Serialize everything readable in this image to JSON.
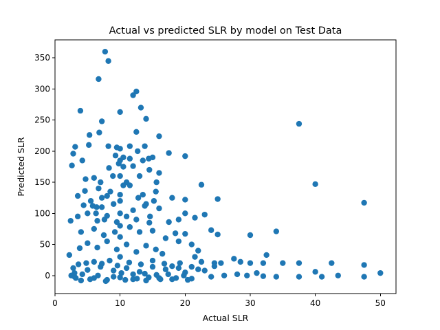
{
  "chart_data": {
    "type": "scatter",
    "title": "Actual vs predicted SLR by model on Test Data",
    "xlabel": "Actual SLR",
    "ylabel": "Predicted SLR",
    "xlim": [
      0,
      52.4
    ],
    "ylim": [
      -29,
      379
    ],
    "xticks": [
      0,
      10,
      20,
      30,
      40,
      50
    ],
    "yticks": [
      0,
      50,
      100,
      150,
      200,
      250,
      300,
      350
    ],
    "grid": false,
    "marker_color": "#1f77b4",
    "points": [
      [
        7.7,
        360
      ],
      [
        8.2,
        345
      ],
      [
        6.7,
        316
      ],
      [
        12.5,
        296
      ],
      [
        12.0,
        290
      ],
      [
        10.0,
        263
      ],
      [
        3.9,
        265
      ],
      [
        13.2,
        270
      ],
      [
        7.2,
        248
      ],
      [
        14.0,
        252
      ],
      [
        37.5,
        244
      ],
      [
        5.3,
        226
      ],
      [
        6.8,
        230
      ],
      [
        12.5,
        231
      ],
      [
        16.0,
        224
      ],
      [
        11.5,
        208
      ],
      [
        3.1,
        207
      ],
      [
        5.2,
        210
      ],
      [
        8.2,
        208
      ],
      [
        9.5,
        206
      ],
      [
        10.0,
        204
      ],
      [
        13.8,
        208
      ],
      [
        17.5,
        197
      ],
      [
        20.0,
        192
      ],
      [
        2.8,
        196
      ],
      [
        15.0,
        190
      ],
      [
        9.3,
        193
      ],
      [
        10.5,
        190
      ],
      [
        11.5,
        188
      ],
      [
        13.5,
        185
      ],
      [
        4.2,
        185
      ],
      [
        2.6,
        177
      ],
      [
        8.3,
        173
      ],
      [
        10.5,
        175
      ],
      [
        12.0,
        176
      ],
      [
        14.5,
        170
      ],
      [
        16.0,
        165
      ],
      [
        6.0,
        157
      ],
      [
        4.7,
        155
      ],
      [
        7.0,
        150
      ],
      [
        13.0,
        160
      ],
      [
        11.0,
        150
      ],
      [
        22.5,
        146
      ],
      [
        40.0,
        147
      ],
      [
        6.7,
        140
      ],
      [
        8.5,
        135
      ],
      [
        10.5,
        145
      ],
      [
        13.5,
        130
      ],
      [
        15.5,
        135
      ],
      [
        18.0,
        125
      ],
      [
        20.0,
        122
      ],
      [
        25.0,
        123
      ],
      [
        47.5,
        117
      ],
      [
        3.5,
        128
      ],
      [
        4.4,
        113
      ],
      [
        5.5,
        120
      ],
      [
        7.2,
        110
      ],
      [
        9.0,
        115
      ],
      [
        10.0,
        120
      ],
      [
        12.0,
        105
      ],
      [
        14.0,
        115
      ],
      [
        16.0,
        108
      ],
      [
        19.0,
        90
      ],
      [
        20.0,
        100
      ],
      [
        21.5,
        93
      ],
      [
        23.0,
        98
      ],
      [
        2.4,
        88
      ],
      [
        3.5,
        95
      ],
      [
        5.0,
        100
      ],
      [
        6.5,
        88
      ],
      [
        8.0,
        96
      ],
      [
        9.5,
        86
      ],
      [
        11.0,
        95
      ],
      [
        12.5,
        90
      ],
      [
        14.5,
        85
      ],
      [
        17.5,
        86
      ],
      [
        18.5,
        68
      ],
      [
        20.0,
        67
      ],
      [
        24.0,
        73
      ],
      [
        25.0,
        66
      ],
      [
        34.0,
        71
      ],
      [
        30.0,
        65
      ],
      [
        4.0,
        70
      ],
      [
        6.0,
        75
      ],
      [
        7.5,
        65
      ],
      [
        10.0,
        62
      ],
      [
        11.5,
        78
      ],
      [
        13.0,
        70
      ],
      [
        15.0,
        72
      ],
      [
        17.0,
        60
      ],
      [
        19.0,
        55
      ],
      [
        21.0,
        50
      ],
      [
        22.0,
        40
      ],
      [
        3.8,
        44
      ],
      [
        5.0,
        52
      ],
      [
        6.5,
        45
      ],
      [
        8.0,
        55
      ],
      [
        9.5,
        42
      ],
      [
        11.0,
        50
      ],
      [
        12.5,
        38
      ],
      [
        14.0,
        48
      ],
      [
        15.5,
        42
      ],
      [
        16.5,
        35
      ],
      [
        21.5,
        30
      ],
      [
        22.5,
        22
      ],
      [
        24.5,
        20
      ],
      [
        25.5,
        20
      ],
      [
        27.5,
        27
      ],
      [
        28.5,
        22
      ],
      [
        30.0,
        20
      ],
      [
        32.5,
        33
      ],
      [
        32.0,
        20
      ],
      [
        35.0,
        20
      ],
      [
        37.5,
        20
      ],
      [
        42.5,
        20
      ],
      [
        47.5,
        17
      ],
      [
        50.0,
        4
      ],
      [
        40.0,
        6
      ],
      [
        41.0,
        -2
      ],
      [
        43.5,
        0
      ],
      [
        47.5,
        -2
      ],
      [
        37.5,
        -2
      ],
      [
        34.0,
        -2
      ],
      [
        32.0,
        -1
      ],
      [
        31.0,
        4
      ],
      [
        29.5,
        0
      ],
      [
        28.0,
        2
      ],
      [
        26.0,
        0
      ],
      [
        24.0,
        -2
      ],
      [
        23.0,
        8
      ],
      [
        22.0,
        10
      ],
      [
        21.0,
        -5
      ],
      [
        20.0,
        5
      ],
      [
        19.0,
        12
      ],
      [
        18.0,
        -6
      ],
      [
        17.0,
        10
      ],
      [
        16.0,
        -4
      ],
      [
        15.0,
        14
      ],
      [
        14.0,
        -8
      ],
      [
        13.0,
        6
      ],
      [
        12.0,
        -6
      ],
      [
        11.0,
        12
      ],
      [
        10.0,
        -3
      ],
      [
        9.0,
        8
      ],
      [
        8.0,
        -7
      ],
      [
        7.0,
        14
      ],
      [
        6.0,
        -4
      ],
      [
        5.0,
        9
      ],
      [
        4.0,
        -8
      ],
      [
        3.0,
        4
      ],
      [
        2.2,
        33
      ],
      [
        2.5,
        0
      ],
      [
        2.8,
        12
      ],
      [
        3.2,
        -4
      ],
      [
        3.6,
        18
      ],
      [
        4.2,
        2
      ],
      [
        4.8,
        20
      ],
      [
        5.4,
        -6
      ],
      [
        6.0,
        22
      ],
      [
        6.6,
        0
      ],
      [
        7.2,
        19
      ],
      [
        7.8,
        -9
      ],
      [
        8.4,
        24
      ],
      [
        9.0,
        -2
      ],
      [
        9.6,
        16
      ],
      [
        10.2,
        4
      ],
      [
        10.8,
        -7
      ],
      [
        11.4,
        21
      ],
      [
        12.0,
        2
      ],
      [
        12.6,
        -5
      ],
      [
        13.2,
        18
      ],
      [
        13.8,
        3
      ],
      [
        14.4,
        -3
      ],
      [
        15.0,
        24
      ],
      [
        15.6,
        1
      ],
      [
        16.2,
        -6
      ],
      [
        16.8,
        19
      ],
      [
        17.4,
        2
      ],
      [
        18.0,
        15
      ],
      [
        18.6,
        -4
      ],
      [
        19.2,
        20
      ],
      [
        19.8,
        0
      ],
      [
        20.4,
        -7
      ],
      [
        21.0,
        14
      ],
      [
        10.0,
        30
      ],
      [
        10.0,
        80
      ],
      [
        10.0,
        100
      ],
      [
        10.0,
        130
      ],
      [
        10.0,
        160
      ],
      [
        10.0,
        185
      ],
      [
        8.0,
        128
      ],
      [
        6.3,
        100
      ],
      [
        7.2,
        125
      ],
      [
        9.2,
        70
      ],
      [
        12.8,
        125
      ],
      [
        13.8,
        112
      ],
      [
        15.2,
        120
      ],
      [
        14.6,
        95
      ],
      [
        5.8,
        112
      ],
      [
        4.6,
        136
      ],
      [
        9.8,
        180
      ],
      [
        8.9,
        160
      ],
      [
        11.5,
        145
      ],
      [
        12.7,
        200
      ],
      [
        14.4,
        188
      ],
      [
        15.6,
        150
      ],
      [
        6.4,
        110
      ],
      [
        7.6,
        90
      ],
      [
        3.0,
        -2
      ],
      [
        24.5,
        15
      ]
    ]
  }
}
